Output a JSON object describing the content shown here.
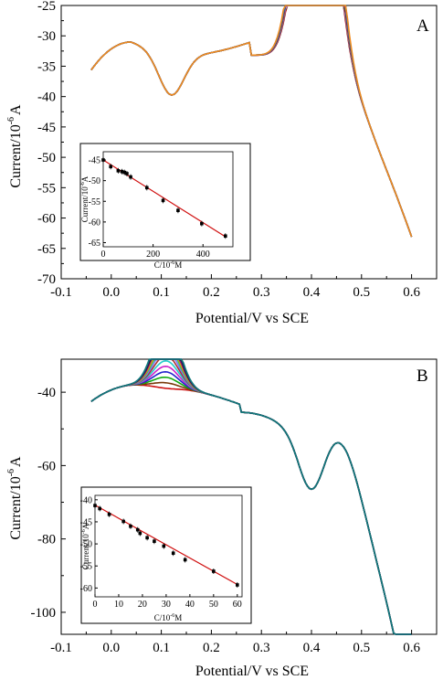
{
  "chart_data": [
    {
      "panel_label": "A",
      "type": "line",
      "xlabel": "Potential/V vs SCE",
      "ylabel_main": "Current/10",
      "ylabel_exp": "-6",
      "ylabel_unit": "A",
      "xlim": [
        -0.1,
        0.65
      ],
      "ylim": [
        -70,
        -25
      ],
      "xticks": [
        -0.1,
        0.0,
        0.1,
        0.2,
        0.3,
        0.4,
        0.5,
        0.6
      ],
      "yticks": [
        -70,
        -65,
        -60,
        -55,
        -50,
        -45,
        -40,
        -35,
        -30,
        -25
      ],
      "x_range": [
        -0.04,
        0.6
      ],
      "colors": [
        "#e01010",
        "#111111",
        "#b3b3b3",
        "#e040e0",
        "#7a1a1a",
        "#11aa11",
        "#cc2266",
        "#2a2aa8",
        "#1a8ab0",
        "#f08a1e"
      ],
      "peak1_x": 0.12,
      "peak2_x": 0.41,
      "peak2_min": [
        -45.0,
        -47.0,
        -48.5,
        -50.5,
        -52.0,
        -54.5,
        -56.0,
        -58.0,
        -60.0,
        -63.3
      ],
      "inset": {
        "xlabel": "C/10",
        "xlabel_exp": "-6",
        "xlabel_unit": "M",
        "ylabel": "Current/10",
        "ylabel_exp": "-6",
        "ylabel_unit": "A",
        "xlim": [
          0,
          520
        ],
        "ylim": [
          -66,
          -43
        ],
        "xticks": [
          0,
          200,
          400
        ],
        "yticks": [
          -45,
          -50,
          -55,
          -60,
          -65
        ],
        "x": [
          0,
          30,
          60,
          75,
          85,
          95,
          110,
          175,
          240,
          300,
          395,
          490
        ],
        "y": [
          -45.0,
          -46.6,
          -47.6,
          -47.8,
          -48.0,
          -48.3,
          -49.1,
          -51.7,
          -54.8,
          -57.2,
          -60.4,
          -63.4
        ],
        "fit": {
          "slope": -0.0379,
          "intercept": -45.0
        }
      }
    },
    {
      "panel_label": "B",
      "type": "line",
      "xlabel": "Potential/V vs SCE",
      "ylabel_main": "Current/10",
      "ylabel_exp": "-6",
      "ylabel_unit": "A",
      "xlim": [
        -0.1,
        0.65
      ],
      "ylim": [
        -106,
        -31
      ],
      "xticks": [
        -0.1,
        0.0,
        0.1,
        0.2,
        0.3,
        0.4,
        0.5,
        0.6
      ],
      "yticks": [
        -100,
        -80,
        -60,
        -40
      ],
      "x_range": [
        -0.04,
        0.6
      ],
      "colors": [
        "#cc1111",
        "#7a3a0a",
        "#11aa11",
        "#2222cc",
        "#cc22cc",
        "#22cccc",
        "#aa3333",
        "#7777ff",
        "#44cc44",
        "#ee8811",
        "#881188",
        "#222222",
        "#1a2a88",
        "#117a7a"
      ],
      "peak1_x": 0.11,
      "peak2_x": 0.4,
      "peak1_min": [
        -40.5,
        -42.0,
        -43.5,
        -45.0,
        -46.5,
        -48.0,
        -49.5,
        -51.0,
        -52.5,
        -54.0,
        -55.5,
        -57.0,
        -58.5,
        -59.5
      ],
      "inset": {
        "xlabel": "C/10",
        "xlabel_exp": "-6",
        "xlabel_unit": "M",
        "ylabel": "Current/10",
        "ylabel_exp": "-6",
        "ylabel_unit": "A",
        "xlim": [
          0,
          62
        ],
        "ylim": [
          -62,
          -39
        ],
        "xticks": [
          0,
          10,
          20,
          30,
          40,
          50,
          60
        ],
        "yticks": [
          -40,
          -45,
          -50,
          -55,
          -60
        ],
        "x": [
          0,
          2,
          6,
          12,
          15,
          18,
          19,
          22,
          25,
          29,
          33,
          38,
          50,
          60
        ],
        "y": [
          -41.3,
          -42.0,
          -43.3,
          -44.9,
          -46.0,
          -46.8,
          -47.6,
          -48.6,
          -49.4,
          -50.5,
          -52.1,
          -53.6,
          -56.2,
          -59.3
        ],
        "fit": {
          "slope": -0.3,
          "intercept": -41.2
        }
      }
    }
  ]
}
